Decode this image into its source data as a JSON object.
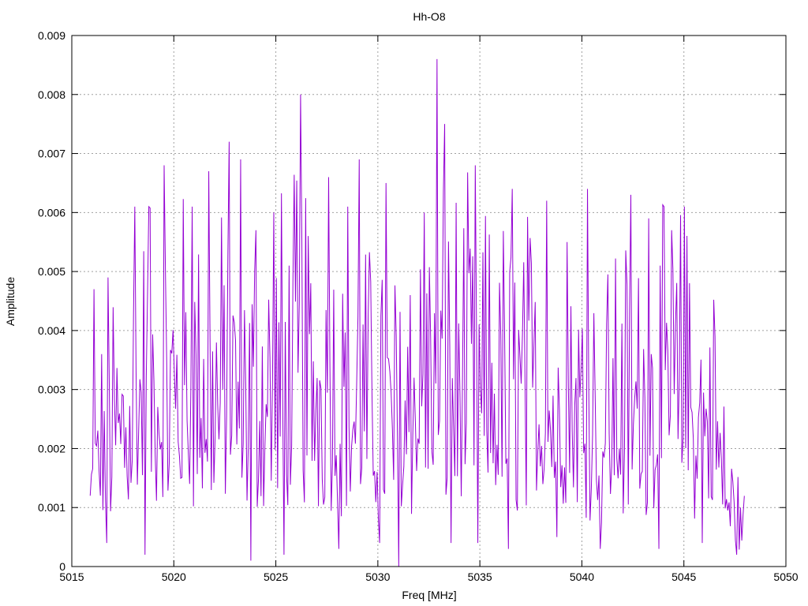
{
  "chart_data": {
    "type": "line",
    "title": "Hh-O8",
    "xlabel": "Freq [MHz]",
    "ylabel": "Amplitude",
    "xlim": [
      5015,
      5050
    ],
    "ylim": [
      0,
      0.009
    ],
    "xticks": [
      "5015",
      "5020",
      "5025",
      "5030",
      "5035",
      "5040",
      "5045",
      "5050"
    ],
    "yticks": [
      "0",
      "0.001",
      "0.002",
      "0.003",
      "0.004",
      "0.005",
      "0.006",
      "0.007",
      "0.008",
      "0.009"
    ],
    "grid": true,
    "series_color": "#9400d3",
    "series": [
      {
        "x_start": 5015.9,
        "x_step": 0.0625,
        "envelope": [
          [
            5015.9,
            0.0012
          ],
          [
            5016.5,
            0.0022
          ],
          [
            5017.3,
            0.0025
          ],
          [
            5018.0,
            0.0031
          ],
          [
            5020.0,
            0.0033
          ],
          [
            5023.0,
            0.0031
          ],
          [
            5026.0,
            0.0034
          ],
          [
            5029.0,
            0.003
          ],
          [
            5031.0,
            0.0026
          ],
          [
            5033.0,
            0.0036
          ],
          [
            5035.0,
            0.0031
          ],
          [
            5038.0,
            0.0031
          ],
          [
            5041.0,
            0.0028
          ],
          [
            5043.0,
            0.003
          ],
          [
            5045.0,
            0.0031
          ],
          [
            5046.5,
            0.0025
          ],
          [
            5047.2,
            0.0012
          ],
          [
            5048.0,
            0.0007
          ]
        ],
        "peaks": [
          [
            5016.1,
            0.0047
          ],
          [
            5016.8,
            0.0049
          ],
          [
            5018.1,
            0.0061
          ],
          [
            5018.8,
            0.0061
          ],
          [
            5019.5,
            0.0068
          ],
          [
            5020.9,
            0.0061
          ],
          [
            5021.7,
            0.0067
          ],
          [
            5022.7,
            0.0072
          ],
          [
            5023.3,
            0.0069
          ],
          [
            5024.0,
            0.0057
          ],
          [
            5024.9,
            0.006
          ],
          [
            5026.2,
            0.008
          ],
          [
            5027.6,
            0.0066
          ],
          [
            5028.5,
            0.0061
          ],
          [
            5029.1,
            0.0069
          ],
          [
            5030.4,
            0.0065
          ],
          [
            5031.6,
            0.0046
          ],
          [
            5032.3,
            0.006
          ],
          [
            5032.9,
            0.0086
          ],
          [
            5033.3,
            0.0075
          ],
          [
            5034.8,
            0.0068
          ],
          [
            5036.6,
            0.0064
          ],
          [
            5038.3,
            0.0062
          ],
          [
            5039.3,
            0.0055
          ],
          [
            5040.3,
            0.0064
          ],
          [
            5042.4,
            0.0063
          ],
          [
            5043.3,
            0.0059
          ],
          [
            5044.4,
            0.0057
          ],
          [
            5045.0,
            0.0061
          ],
          [
            5046.5,
            0.0039
          ],
          [
            5047.8,
            0.001
          ]
        ],
        "dips": [
          [
            5016.7,
            0.0004
          ],
          [
            5018.6,
            0.0002
          ],
          [
            5023.8,
            0.0001
          ],
          [
            5025.4,
            0.0002
          ],
          [
            5028.1,
            0.0003
          ],
          [
            5030.1,
            0.0004
          ],
          [
            5031.0,
            0.0
          ],
          [
            5033.6,
            0.0004
          ],
          [
            5034.9,
            0.0004
          ],
          [
            5036.4,
            0.0003
          ],
          [
            5038.8,
            0.0005
          ],
          [
            5040.9,
            0.0003
          ],
          [
            5043.8,
            0.0003
          ],
          [
            5045.9,
            0.0004
          ],
          [
            5047.6,
            0.0002
          ]
        ]
      }
    ]
  }
}
